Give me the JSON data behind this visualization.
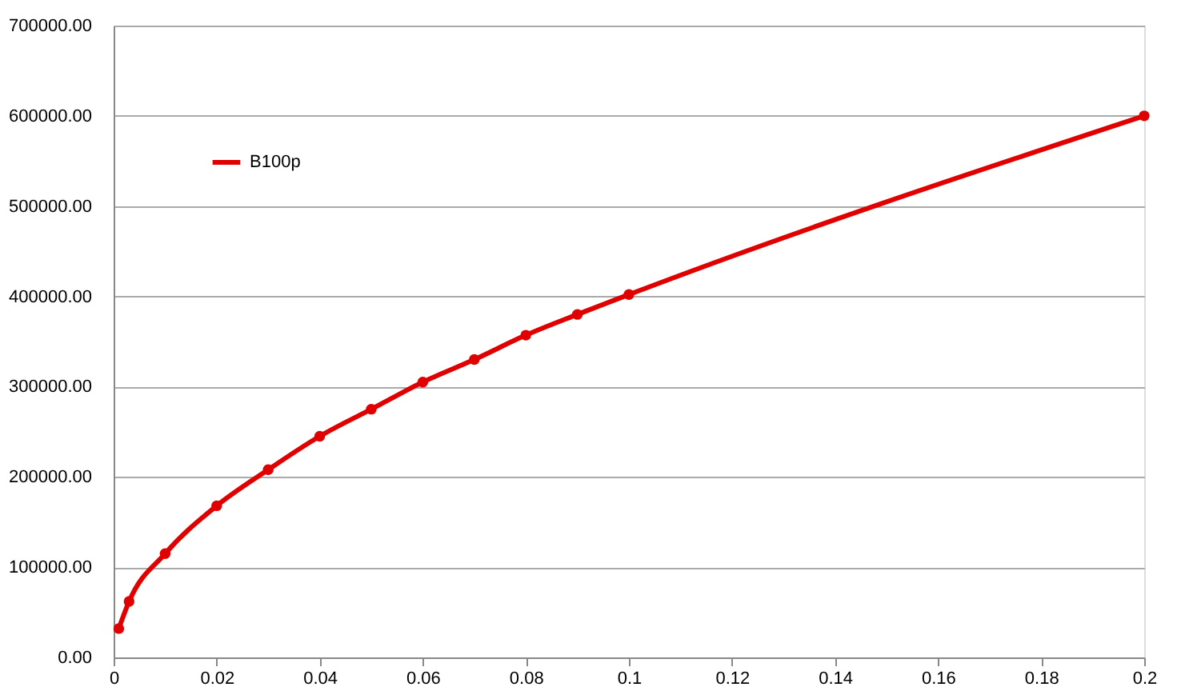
{
  "chart_data": {
    "type": "line",
    "x": [
      0.001,
      0.003,
      0.01,
      0.02,
      0.03,
      0.04,
      0.05,
      0.06,
      0.07,
      0.08,
      0.09,
      0.1,
      0.2
    ],
    "series": [
      {
        "name": "B100p",
        "color": "#e00000",
        "values": [
          32000,
          62000,
          115000,
          168000,
          208000,
          245000,
          275000,
          305000,
          330000,
          357000,
          380000,
          402000,
          600000
        ]
      }
    ],
    "xlim": [
      0,
      0.2
    ],
    "xticks": [
      0,
      0.02,
      0.04,
      0.06,
      0.08,
      0.1,
      0.12,
      0.14,
      0.16,
      0.18,
      0.2
    ],
    "ylim": [
      0,
      700000
    ],
    "yticks": [
      {
        "value": 0,
        "label": "0.00"
      },
      {
        "value": 100000,
        "label": "100000.00"
      },
      {
        "value": 200000,
        "label": "200000.00"
      },
      {
        "value": 300000,
        "label": "300000.00"
      },
      {
        "value": 400000,
        "label": "400000.00"
      },
      {
        "value": 500000,
        "label": "500000.00"
      },
      {
        "value": 600000,
        "label": "600000.00"
      },
      {
        "value": 700000,
        "label": "700000.00"
      }
    ],
    "grid": "y",
    "legend": "top left",
    "marker": "circle",
    "line_style": "solid"
  }
}
